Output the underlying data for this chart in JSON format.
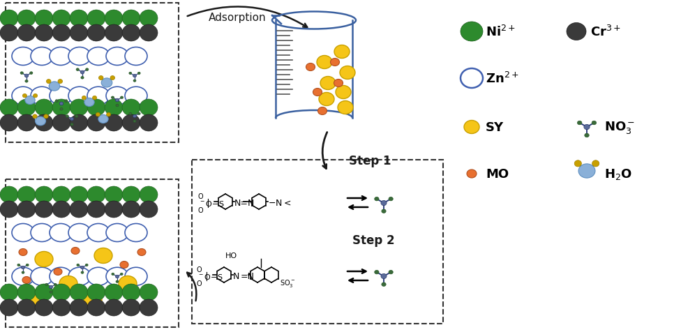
{
  "bg_color": "#ffffff",
  "ni_color": "#2d8a2d",
  "ni_edge": "#1a5a1a",
  "cr_color": "#3a3a3a",
  "cr_edge": "#181818",
  "zn_color": "#ffffff",
  "zn_edge": "#4060b0",
  "sy_color": "#f5c518",
  "sy_edge": "#c8a000",
  "mo_color": "#e87030",
  "mo_edge": "#b05020",
  "no3_center_color": "#5a6a9a",
  "no3_end_color": "#3a6a3a",
  "no3_bond_color": "#2a3a7a",
  "h2o_center_color": "#8ab0d8",
  "h2o_h_color": "#c8a000",
  "h2o_bond_color": "#3060a0",
  "beaker_color": "#3a60a0",
  "grad_color": "#555555",
  "arrow_color": "#1a1a1a",
  "box_color": "#333333",
  "text_color": "#1a1a1a",
  "legend_ni_label": "Ni$^{2+}$",
  "legend_cr_label": "Cr$^{3+}$",
  "legend_zn_label": "Zn$^{2+}$",
  "legend_sy_label": "SY",
  "legend_mo_label": "MO",
  "legend_no3_label": "NO$_3^-$",
  "legend_h2o_label": "H$_2$O",
  "adsorption_label": "Adsorption",
  "step1_label": "Step 1",
  "step2_label": "Step 2"
}
